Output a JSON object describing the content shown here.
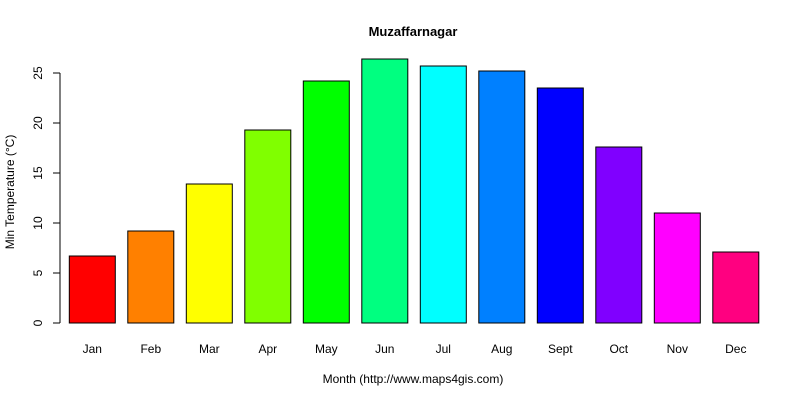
{
  "chart_data": {
    "type": "bar",
    "title": "Muzaffarnagar",
    "xlabel": "Month (http://www.maps4gis.com)",
    "ylabel": "Min Temperature (°C)",
    "categories": [
      "Jan",
      "Feb",
      "Mar",
      "Apr",
      "May",
      "Jun",
      "Jul",
      "Aug",
      "Sept",
      "Oct",
      "Nov",
      "Dec"
    ],
    "values": [
      6.7,
      9.2,
      13.9,
      19.3,
      24.2,
      26.4,
      25.7,
      25.2,
      23.5,
      17.6,
      11.0,
      7.1
    ],
    "colors": [
      "#FF0000",
      "#FF8000",
      "#FFFF00",
      "#80FF00",
      "#00FF00",
      "#00FF80",
      "#00FFFF",
      "#0080FF",
      "#0000FF",
      "#8000FF",
      "#FF00FF",
      "#FF0080"
    ],
    "y_ticks": [
      "0",
      "5",
      "10",
      "15",
      "20",
      "25"
    ],
    "ylim": [
      0,
      27
    ],
    "grid": false,
    "legend": "none"
  }
}
